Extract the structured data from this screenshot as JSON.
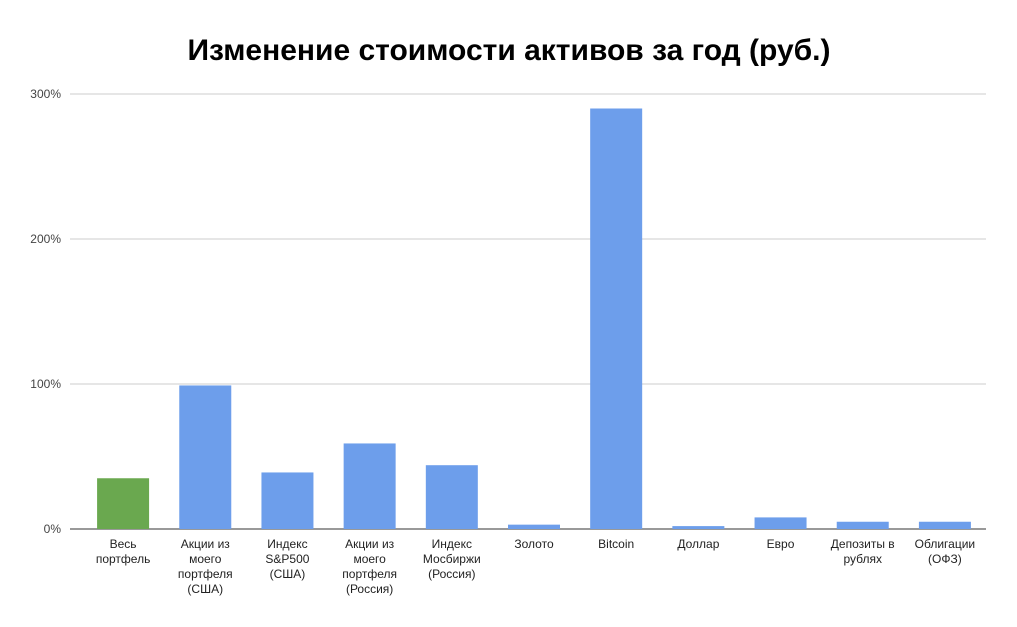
{
  "chart_data": {
    "type": "bar",
    "title": "Изменение стоимости активов за год (руб.)",
    "xlabel": "",
    "ylabel": "",
    "ylim": [
      0,
      300
    ],
    "y_ticks": [
      {
        "value": 0,
        "label": "0%"
      },
      {
        "value": 100,
        "label": "100%"
      },
      {
        "value": 200,
        "label": "200%"
      },
      {
        "value": 300,
        "label": "300%"
      }
    ],
    "categories": [
      [
        "Весь",
        "портфель"
      ],
      [
        "Акции из",
        "моего",
        "портфеля",
        "(США)"
      ],
      [
        "Индекс",
        "S&P500",
        "(США)"
      ],
      [
        "Акции из",
        "моего",
        "портфеля",
        "(Россия)"
      ],
      [
        "Индекс",
        "Мосбиржи",
        "(Россия)"
      ],
      [
        "Золото"
      ],
      [
        "Bitcoin"
      ],
      [
        "Доллар"
      ],
      [
        "Евро"
      ],
      [
        "Депозиты в",
        "рублях"
      ],
      [
        "Облигации",
        "(ОФЗ)"
      ]
    ],
    "values": [
      35,
      99,
      39,
      59,
      44,
      3,
      290,
      2,
      8,
      5,
      5
    ],
    "colors": [
      "#6aa84f",
      "#6d9eeb",
      "#6d9eeb",
      "#6d9eeb",
      "#6d9eeb",
      "#6d9eeb",
      "#6d9eeb",
      "#6d9eeb",
      "#6d9eeb",
      "#6d9eeb",
      "#6d9eeb"
    ],
    "grid": true,
    "legend": "none",
    "style": {
      "grid_color": "#cccccc",
      "axis_color": "#333333",
      "title_color": "#000000",
      "tick_label_color": "#444444",
      "category_label_color": "#222222"
    }
  }
}
